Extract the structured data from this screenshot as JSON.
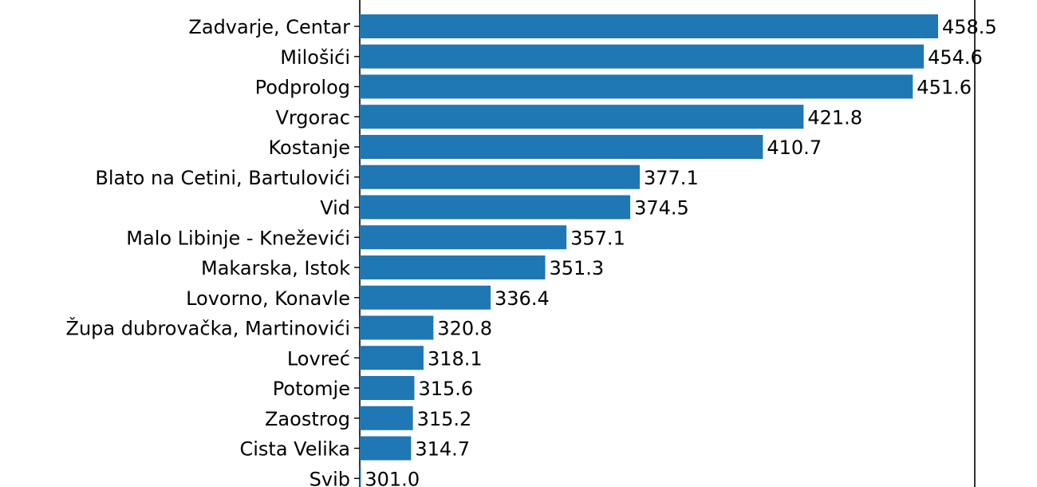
{
  "chart_data": {
    "type": "bar",
    "orientation": "horizontal",
    "categories": [
      "Zadvarje, Centar",
      "Milošići",
      "Podprolog",
      "Vrgorac",
      "Kostanje",
      "Blato na Cetini, Bartulovići",
      "Vid",
      "Malo Libinje - Kneževići",
      "Makarska, Istok",
      "Lovorno, Konavle",
      "Župa dubrovačka, Martinovići",
      "Lovreć",
      "Potomje",
      "Zaostrog",
      "Cista Velika",
      "Svib"
    ],
    "values": [
      458.5,
      454.6,
      451.6,
      421.8,
      410.7,
      377.1,
      374.5,
      357.1,
      351.3,
      336.4,
      320.8,
      318.1,
      315.6,
      315.2,
      314.7,
      301.0
    ],
    "value_labels": [
      "458.5",
      "454.6",
      "451.6",
      "421.8",
      "410.7",
      "377.1",
      "374.5",
      "357.1",
      "351.3",
      "336.4",
      "320.8",
      "318.1",
      "315.6",
      "315.2",
      "314.7",
      "301.0"
    ],
    "title": "",
    "xlabel": "",
    "ylabel": "",
    "bar_color": "#1f77b4"
  }
}
